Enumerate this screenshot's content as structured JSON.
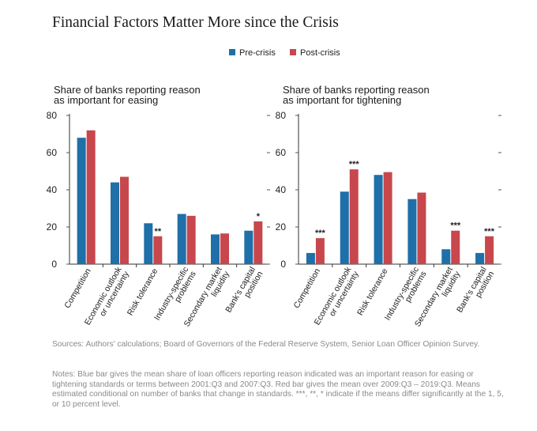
{
  "title": "Financial Factors Matter More since the Crisis",
  "legend": {
    "pre": "Pre-crisis",
    "post": "Post-crisis"
  },
  "colors": {
    "pre": "#1f6fa8",
    "post": "#c8474c",
    "axis": "#333333",
    "grid_tick": "#555555"
  },
  "chart_data": [
    {
      "type": "bar",
      "title": "Share of banks reporting reason as important for easing",
      "title_lines": [
        "Share of banks reporting reason",
        "as important for easing"
      ],
      "ylim": [
        0,
        80
      ],
      "yticks": [
        0,
        20,
        40,
        60,
        80
      ],
      "categories": [
        [
          "Competition"
        ],
        [
          "Economic outlook",
          "or uncertainty"
        ],
        [
          "Risk tolerance"
        ],
        [
          "Industry-specific",
          "problems"
        ],
        [
          "Secondary market",
          "liquidity"
        ],
        [
          "Bank's capital",
          "position"
        ]
      ],
      "series": [
        {
          "name": "Pre-crisis",
          "values": [
            68,
            44,
            22,
            27,
            16,
            18
          ]
        },
        {
          "name": "Post-crisis",
          "values": [
            72,
            47,
            15,
            26,
            16.5,
            23
          ]
        }
      ],
      "significance": [
        "",
        "",
        "**",
        "",
        "",
        "*"
      ]
    },
    {
      "type": "bar",
      "title": "Share of banks reporting reason as important for tightening",
      "title_lines": [
        "Share of banks reporting reason",
        "as important for tightening"
      ],
      "ylim": [
        0,
        80
      ],
      "yticks": [
        0,
        20,
        40,
        60,
        80
      ],
      "categories": [
        [
          "Competition"
        ],
        [
          "Economic outlook",
          "or uncertainty"
        ],
        [
          "Risk tolerance"
        ],
        [
          "Industry-specific",
          "problems"
        ],
        [
          "Secondary market",
          "liquidity"
        ],
        [
          "Bank's capital",
          "position"
        ]
      ],
      "series": [
        {
          "name": "Pre-crisis",
          "values": [
            6,
            39,
            48,
            35,
            8,
            6
          ]
        },
        {
          "name": "Post-crisis",
          "values": [
            14,
            51,
            49.5,
            38.5,
            18,
            15
          ]
        }
      ],
      "significance": [
        "***",
        "***",
        "",
        "",
        "***",
        "***"
      ]
    }
  ],
  "sources": "Sources: Authors' calculations; Board of Governors of the Federal Reserve System, Senior Loan Officer Opinion Survey.",
  "notes": "Notes: Blue bar gives the mean share of loan officers reporting reason indicated was an important reason for easing or tightening standards or terms between 2001:Q3 and 2007:Q3. Red bar gives the mean over 2009:Q3 – 2019:Q3. Means estimated conditional on number of banks that change in standards.  ***, **, * indicate if the means differ significantly at the 1, 5, or 10 percent level."
}
